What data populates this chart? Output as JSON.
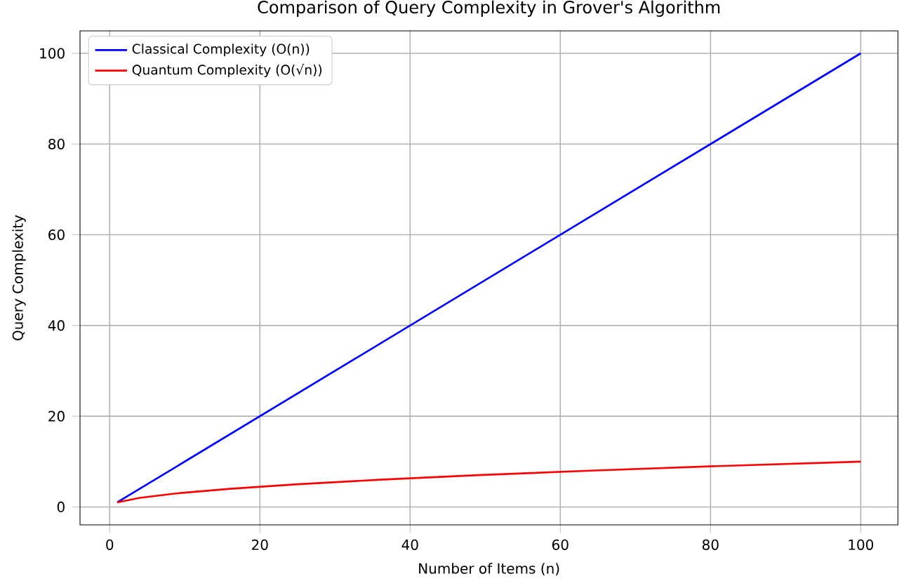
{
  "chart_data": {
    "type": "line",
    "title": "Comparison of Query Complexity in Grover's Algorithm",
    "xlabel": "Number of Items (n)",
    "ylabel": "Query Complexity",
    "series": [
      {
        "name": "Classical Complexity (O(n))",
        "color": "#0000ff",
        "x": [
          1,
          100
        ],
        "values": [
          1,
          100
        ]
      },
      {
        "name": "Quantum Complexity (O(√n))",
        "color": "#ff0000",
        "x": [
          1,
          4,
          9,
          16,
          25,
          36,
          49,
          64,
          81,
          100
        ],
        "values": [
          1,
          2,
          3,
          4,
          5,
          6,
          7,
          8,
          9,
          10
        ]
      }
    ],
    "xlim": [
      -3.95,
      104.95
    ],
    "ylim": [
      -3.95,
      104.95
    ],
    "xticks": [
      0,
      20,
      40,
      60,
      80,
      100
    ],
    "yticks": [
      0,
      20,
      40,
      60,
      80,
      100
    ],
    "grid": true,
    "legend": "top left",
    "line_style": "solid",
    "marker": "none"
  }
}
